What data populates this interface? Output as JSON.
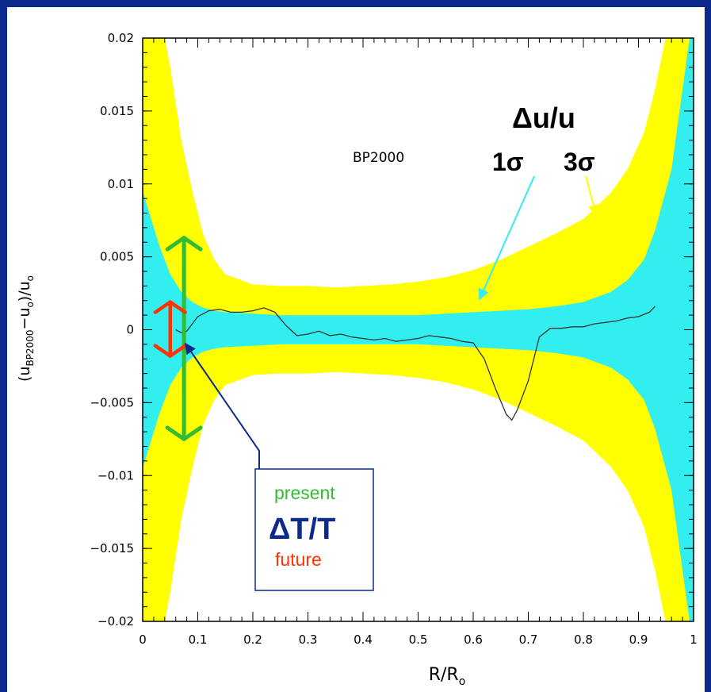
{
  "chart_data": {
    "type": "area",
    "xlabel": "R/R",
    "xlabel_sub": "o",
    "ylabel_parts": [
      "(u",
      "BP2000",
      "−u",
      "o",
      ")/u",
      "o"
    ],
    "xlim": [
      0,
      1
    ],
    "ylim": [
      -0.02,
      0.02
    ],
    "x_ticks": [
      0,
      0.1,
      0.2,
      0.3,
      0.4,
      0.5,
      0.6,
      0.7,
      0.8,
      0.9,
      1
    ],
    "x_tick_labels": [
      "0",
      "0.1",
      "0.2",
      "0.3",
      "0.4",
      "0.5",
      "0.6",
      "0.7",
      "0.8",
      "0.9",
      "1"
    ],
    "y_ticks": [
      -0.02,
      -0.015,
      -0.01,
      -0.005,
      0,
      0.005,
      0.01,
      0.015,
      0.02
    ],
    "y_tick_labels": [
      "−0.02",
      "−0.015",
      "−0.01",
      "−0.005",
      "0",
      "0.005",
      "0.01",
      "0.015",
      "0.02"
    ],
    "series_label": "BP2000",
    "title": "Δu/u",
    "sigma_labels": {
      "one": "1σ",
      "three": "3σ"
    },
    "colors": {
      "three_sigma": "#ffff00",
      "one_sigma": "#33eeee",
      "line": "#333333",
      "present": "#33bb33",
      "future": "#ff3300",
      "box_border": "#0b2a8c",
      "delta_t": "#0b2a8c",
      "background": "#0b2a8c"
    },
    "bands": {
      "x": [
        0.0,
        0.03,
        0.05,
        0.07,
        0.09,
        0.11,
        0.13,
        0.15,
        0.2,
        0.25,
        0.3,
        0.35,
        0.4,
        0.45,
        0.5,
        0.55,
        0.6,
        0.65,
        0.7,
        0.75,
        0.8,
        0.85,
        0.88,
        0.91,
        0.93,
        0.96,
        1.0
      ],
      "three_sigma": [
        0.025,
        0.022,
        0.018,
        0.013,
        0.0095,
        0.0065,
        0.0048,
        0.0038,
        0.0031,
        0.003,
        0.003,
        0.0029,
        0.003,
        0.0031,
        0.0033,
        0.0036,
        0.0041,
        0.0048,
        0.0057,
        0.0066,
        0.0076,
        0.0094,
        0.011,
        0.0135,
        0.0165,
        0.022,
        0.025
      ],
      "one_sigma": [
        0.0095,
        0.0058,
        0.0038,
        0.0026,
        0.0019,
        0.0015,
        0.0013,
        0.0012,
        0.0011,
        0.001,
        0.001,
        0.001,
        0.001,
        0.001,
        0.001,
        0.0011,
        0.0012,
        0.0013,
        0.0014,
        0.0016,
        0.0019,
        0.0026,
        0.0034,
        0.0048,
        0.0068,
        0.011,
        0.022
      ]
    },
    "series": [
      {
        "x": [
          0.06,
          0.07,
          0.08,
          0.09,
          0.1,
          0.12,
          0.14,
          0.16,
          0.18,
          0.2,
          0.22,
          0.24,
          0.26,
          0.28,
          0.3,
          0.32,
          0.34,
          0.36,
          0.38,
          0.4,
          0.42,
          0.44,
          0.46,
          0.48,
          0.5,
          0.52,
          0.54,
          0.56,
          0.58,
          0.6,
          0.62,
          0.64,
          0.66,
          0.67,
          0.68,
          0.7,
          0.72,
          0.74,
          0.76,
          0.78,
          0.8,
          0.82,
          0.84,
          0.86,
          0.88,
          0.9,
          0.92,
          0.93
        ],
        "y": [
          0.0,
          -0.0002,
          -0.0001,
          0.0004,
          0.0009,
          0.0013,
          0.0014,
          0.0012,
          0.0012,
          0.0013,
          0.0015,
          0.0012,
          0.0003,
          -0.0004,
          -0.0003,
          -0.0001,
          -0.0004,
          -0.0003,
          -0.0005,
          -0.0006,
          -0.0007,
          -0.0006,
          -0.0008,
          -0.0007,
          -0.0006,
          -0.0004,
          -0.0005,
          -0.0006,
          -0.0008,
          -0.0009,
          -0.002,
          -0.004,
          -0.0058,
          -0.0062,
          -0.0055,
          -0.0035,
          -0.0005,
          0.0001,
          0.0001,
          0.0002,
          0.0002,
          0.0004,
          0.0005,
          0.0006,
          0.0008,
          0.0009,
          0.0012,
          0.0016
        ]
      }
    ],
    "arrows": {
      "present_x": 0.075,
      "present_y": [
        -0.0075,
        0.0063
      ],
      "future_x": 0.05,
      "future_y": [
        -0.0018,
        0.0019
      ]
    }
  },
  "legend_box": {
    "present": "present",
    "delta_t": "ΔT/T",
    "future": "future"
  }
}
